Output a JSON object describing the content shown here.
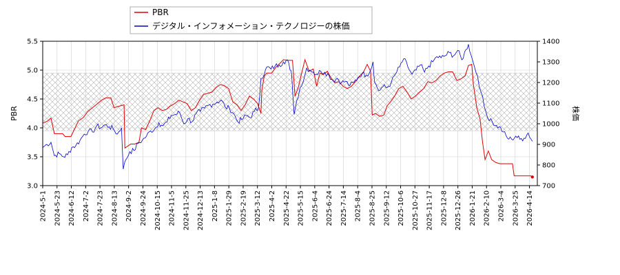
{
  "chart_data": {
    "type": "line",
    "title": "",
    "legend": {
      "placement": "top-left",
      "entries": [
        {
          "label": "PBR",
          "color": "#dd0000"
        },
        {
          "label": "デジタル・インフォメーション・テクノロジーの株価",
          "color": "#0000cc"
        }
      ]
    },
    "y_left": {
      "label": "PBR",
      "range": [
        3.0,
        5.5
      ],
      "ticks": [
        "3.0",
        "3.5",
        "4.0",
        "4.5",
        "5.0",
        "5.5"
      ]
    },
    "y_right": {
      "label": "株価",
      "range": [
        700,
        1400
      ],
      "ticks": [
        "700",
        "800",
        "900",
        "1000",
        "1100",
        "1200",
        "1300",
        "1400"
      ]
    },
    "x_ticks": [
      "2024-5-1",
      "2024-5-23",
      "2024-6-12",
      "2024-7-2",
      "2024-7-23",
      "2024-8-13",
      "2024-9-2",
      "2024-9-24",
      "2024-10-15",
      "2024-11-5",
      "2024-11-25",
      "2024-12-13",
      "2025-1-8",
      "2025-1-29",
      "2025-2-19",
      "2025-3-12",
      "2025-4-2",
      "2025-4-22",
      "2025-5-15",
      "2025-6-4",
      "2025-6-24",
      "2025-7-14",
      "2025-8-4",
      "2025-8-25",
      "2025-9-12",
      "2025-10-6",
      "2025-10-27",
      "2025-11-17",
      "2025-12-8",
      "2025-12-26",
      "2026-1-21",
      "2026-2-10",
      "2026-3-4",
      "2026-3-25",
      "2026-4-14"
    ],
    "band": {
      "low": 3.95,
      "high": 4.95,
      "hatch": true
    },
    "grid": true,
    "series": [
      {
        "name": "PBR",
        "axis": "left",
        "color": "#dd0000",
        "points": [
          [
            0,
            4.08
          ],
          [
            0.6,
            4.12
          ],
          [
            1,
            4.17
          ],
          [
            1.4,
            3.9
          ],
          [
            2.4,
            3.9
          ],
          [
            2.7,
            3.85
          ],
          [
            3.4,
            3.85
          ],
          [
            3.8,
            3.97
          ],
          [
            4.3,
            4.12
          ],
          [
            4.9,
            4.18
          ],
          [
            5.4,
            4.28
          ],
          [
            6.0,
            4.35
          ],
          [
            6.6,
            4.42
          ],
          [
            7.1,
            4.48
          ],
          [
            7.6,
            4.52
          ],
          [
            8.2,
            4.52
          ],
          [
            8.6,
            4.35
          ],
          [
            9.3,
            4.38
          ],
          [
            9.8,
            4.4
          ],
          [
            9.9,
            3.65
          ],
          [
            10.6,
            3.72
          ],
          [
            11.1,
            3.72
          ],
          [
            11.6,
            3.75
          ],
          [
            11.9,
            4.0
          ],
          [
            12.4,
            3.97
          ],
          [
            12.9,
            4.12
          ],
          [
            13.4,
            4.3
          ],
          [
            13.9,
            4.35
          ],
          [
            14.4,
            4.3
          ],
          [
            14.9,
            4.32
          ],
          [
            15.4,
            4.38
          ],
          [
            15.9,
            4.42
          ],
          [
            16.4,
            4.48
          ],
          [
            16.9,
            4.45
          ],
          [
            17.4,
            4.42
          ],
          [
            17.9,
            4.3
          ],
          [
            18.4,
            4.35
          ],
          [
            18.9,
            4.48
          ],
          [
            19.4,
            4.58
          ],
          [
            19.9,
            4.6
          ],
          [
            20.4,
            4.62
          ],
          [
            20.9,
            4.7
          ],
          [
            21.4,
            4.75
          ],
          [
            21.9,
            4.73
          ],
          [
            22.4,
            4.68
          ],
          [
            22.9,
            4.45
          ],
          [
            23.4,
            4.4
          ],
          [
            23.9,
            4.3
          ],
          [
            24.4,
            4.4
          ],
          [
            24.9,
            4.55
          ],
          [
            25.4,
            4.5
          ],
          [
            25.9,
            4.42
          ],
          [
            26.3,
            4.25
          ],
          [
            26.4,
            4.65
          ],
          [
            26.7,
            4.9
          ],
          [
            27.0,
            4.95
          ],
          [
            27.6,
            4.95
          ],
          [
            28.1,
            5.05
          ],
          [
            28.6,
            5.12
          ],
          [
            29.0,
            5.18
          ],
          [
            29.6,
            5.17
          ],
          [
            30.1,
            5.17
          ],
          [
            30.4,
            4.55
          ],
          [
            30.8,
            4.7
          ],
          [
            31.2,
            4.95
          ],
          [
            31.6,
            5.18
          ],
          [
            32.1,
            4.98
          ],
          [
            32.6,
            5.02
          ],
          [
            33.0,
            4.72
          ],
          [
            33.4,
            4.95
          ],
          [
            33.8,
            4.92
          ],
          [
            34.3,
            4.98
          ],
          [
            34.8,
            4.85
          ],
          [
            35.2,
            4.78
          ],
          [
            35.7,
            4.8
          ],
          [
            36.2,
            4.72
          ],
          [
            36.7,
            4.68
          ],
          [
            37.2,
            4.72
          ],
          [
            37.8,
            4.82
          ],
          [
            38.2,
            4.9
          ],
          [
            38.6,
            4.95
          ],
          [
            39.1,
            5.1
          ],
          [
            39.5,
            4.98
          ],
          [
            39.7,
            4.22
          ],
          [
            40.1,
            4.25
          ],
          [
            40.6,
            4.2
          ],
          [
            41.1,
            4.22
          ],
          [
            41.5,
            4.38
          ],
          [
            41.9,
            4.45
          ],
          [
            42.4,
            4.55
          ],
          [
            42.9,
            4.68
          ],
          [
            43.4,
            4.72
          ],
          [
            43.9,
            4.62
          ],
          [
            44.4,
            4.5
          ],
          [
            44.9,
            4.55
          ],
          [
            45.4,
            4.62
          ],
          [
            45.9,
            4.68
          ],
          [
            46.4,
            4.8
          ],
          [
            46.9,
            4.78
          ],
          [
            47.4,
            4.82
          ],
          [
            47.9,
            4.9
          ],
          [
            48.4,
            4.95
          ],
          [
            48.9,
            4.97
          ],
          [
            49.4,
            4.97
          ],
          [
            49.9,
            4.82
          ],
          [
            50.4,
            4.85
          ],
          [
            50.9,
            4.9
          ],
          [
            51.3,
            5.08
          ],
          [
            51.7,
            5.1
          ],
          [
            51.9,
            4.75
          ],
          [
            52.3,
            4.35
          ],
          [
            52.7,
            4.15
          ],
          [
            53.0,
            3.75
          ],
          [
            53.3,
            3.45
          ],
          [
            53.7,
            3.6
          ],
          [
            54.1,
            3.45
          ],
          [
            54.6,
            3.4
          ],
          [
            55.1,
            3.38
          ],
          [
            55.6,
            3.38
          ],
          [
            56.1,
            3.38
          ],
          [
            56.6,
            3.38
          ],
          [
            56.8,
            3.17
          ],
          [
            57.3,
            3.17
          ],
          [
            57.8,
            3.17
          ],
          [
            58.3,
            3.17
          ],
          [
            58.8,
            3.17
          ],
          [
            59.0,
            3.15
          ]
        ]
      },
      {
        "name": "デジタル・インフォメーション・テクノロジーの株価",
        "axis": "right",
        "color": "#0000cc",
        "points": [
          [
            0,
            885
          ],
          [
            0.5,
            900
          ],
          [
            1,
            910
          ],
          [
            1.4,
            845
          ],
          [
            2,
            855
          ],
          [
            2.5,
            840
          ],
          [
            3,
            850
          ],
          [
            3.5,
            885
          ],
          [
            4,
            895
          ],
          [
            4.5,
            920
          ],
          [
            5,
            950
          ],
          [
            5.5,
            965
          ],
          [
            6,
            960
          ],
          [
            6.5,
            990
          ],
          [
            7,
            980
          ],
          [
            7.5,
            995
          ],
          [
            8,
            985
          ],
          [
            8.5,
            975
          ],
          [
            9,
            950
          ],
          [
            9.5,
            980
          ],
          [
            9.7,
            780
          ],
          [
            10,
            825
          ],
          [
            10.5,
            865
          ],
          [
            11,
            870
          ],
          [
            11.5,
            905
          ],
          [
            12,
            920
          ],
          [
            12.5,
            940
          ],
          [
            13,
            965
          ],
          [
            13.5,
            975
          ],
          [
            14,
            1005
          ],
          [
            14.5,
            990
          ],
          [
            15,
            1010
          ],
          [
            15.5,
            1040
          ],
          [
            16,
            1045
          ],
          [
            16.5,
            1055
          ],
          [
            17,
            1000
          ],
          [
            17.5,
            1025
          ],
          [
            18,
            1010
          ],
          [
            18.5,
            1050
          ],
          [
            19,
            1060
          ],
          [
            19.5,
            1075
          ],
          [
            20,
            1090
          ],
          [
            20.5,
            1095
          ],
          [
            21,
            1105
          ],
          [
            21.5,
            1115
          ],
          [
            22,
            1080
          ],
          [
            22.5,
            1075
          ],
          [
            23,
            1050
          ],
          [
            23.5,
            1010
          ],
          [
            24,
            1020
          ],
          [
            24.5,
            1040
          ],
          [
            25,
            1030
          ],
          [
            25.5,
            1060
          ],
          [
            26,
            1075
          ],
          [
            26.3,
            1220
          ],
          [
            26.7,
            1240
          ],
          [
            27,
            1275
          ],
          [
            27.5,
            1265
          ],
          [
            28,
            1280
          ],
          [
            28.5,
            1285
          ],
          [
            29,
            1300
          ],
          [
            29.5,
            1310
          ],
          [
            29.8,
            1260
          ],
          [
            30,
            1240
          ],
          [
            30.3,
            1045
          ],
          [
            30.6,
            1110
          ],
          [
            31,
            1175
          ],
          [
            31.4,
            1205
          ],
          [
            31.8,
            1270
          ],
          [
            32.2,
            1260
          ],
          [
            32.6,
            1250
          ],
          [
            33,
            1240
          ],
          [
            33.5,
            1255
          ],
          [
            34,
            1250
          ],
          [
            34.5,
            1235
          ],
          [
            35,
            1210
          ],
          [
            35.5,
            1220
          ],
          [
            36,
            1200
          ],
          [
            36.5,
            1205
          ],
          [
            37,
            1185
          ],
          [
            37.5,
            1200
          ],
          [
            38,
            1225
          ],
          [
            38.5,
            1245
          ],
          [
            39,
            1235
          ],
          [
            39.5,
            1260
          ],
          [
            39.8,
            1300
          ],
          [
            40,
            1200
          ],
          [
            40.5,
            1160
          ],
          [
            41,
            1180
          ],
          [
            41.5,
            1175
          ],
          [
            42,
            1200
          ],
          [
            42.5,
            1240
          ],
          [
            43,
            1275
          ],
          [
            43.5,
            1315
          ],
          [
            44,
            1275
          ],
          [
            44.5,
            1240
          ],
          [
            45,
            1260
          ],
          [
            45.5,
            1285
          ],
          [
            46,
            1250
          ],
          [
            46.5,
            1280
          ],
          [
            47,
            1300
          ],
          [
            47.5,
            1325
          ],
          [
            48,
            1320
          ],
          [
            48.5,
            1330
          ],
          [
            49,
            1345
          ],
          [
            49.5,
            1330
          ],
          [
            50,
            1355
          ],
          [
            50.5,
            1310
          ],
          [
            51,
            1360
          ],
          [
            51.3,
            1385
          ],
          [
            51.6,
            1335
          ],
          [
            52,
            1280
          ],
          [
            52.4,
            1230
          ],
          [
            52.8,
            1155
          ],
          [
            53.2,
            1085
          ],
          [
            53.6,
            1030
          ],
          [
            54,
            1025
          ],
          [
            54.5,
            990
          ],
          [
            55,
            985
          ],
          [
            55.5,
            960
          ],
          [
            56,
            930
          ],
          [
            56.5,
            925
          ],
          [
            57,
            940
          ],
          [
            57.5,
            925
          ],
          [
            58,
            930
          ],
          [
            58.5,
            955
          ],
          [
            59,
            915
          ]
        ]
      }
    ]
  }
}
